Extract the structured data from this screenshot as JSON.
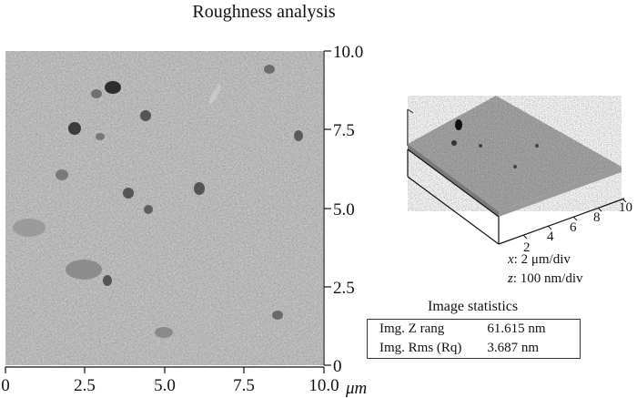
{
  "title": "Roughness analysis",
  "map_2d": {
    "y_ticks": [
      "10.0",
      "7.5",
      "5.0",
      "2.5",
      "0"
    ],
    "x_ticks": [
      "0",
      "2.5",
      "5.0",
      "7.5",
      "10.0"
    ],
    "x_unit": "μm"
  },
  "surface_3d": {
    "depth_ticks": [
      "2",
      "4",
      "6",
      "8",
      "10"
    ],
    "x_scale": {
      "var": "x",
      "value": ": 2 μm/div"
    },
    "z_scale": {
      "var": "z",
      "value": ": 100 nm/div"
    }
  },
  "statistics": {
    "title": "Image statistics",
    "rows": [
      {
        "label": "Img. Z rang",
        "value": "61.615 nm"
      },
      {
        "label": "Img. Rms (Rq)",
        "value": "3.687 nm"
      }
    ]
  }
}
